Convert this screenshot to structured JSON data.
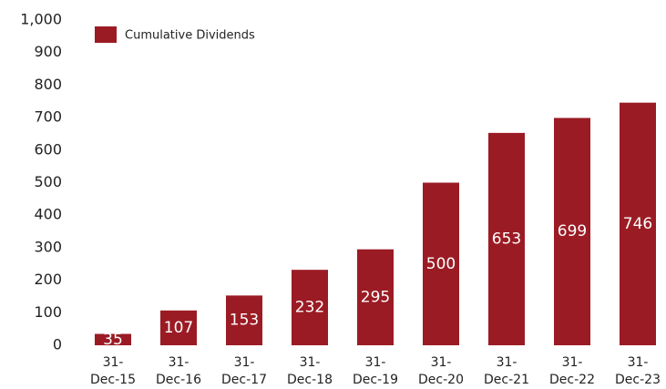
{
  "chart_data": {
    "type": "bar",
    "categories": [
      "31-Dec-15",
      "31-Dec-16",
      "31-Dec-17",
      "31-Dec-18",
      "31-Dec-19",
      "31-Dec-20",
      "31-Dec-21",
      "31-Dec-22",
      "31-Dec-23"
    ],
    "series": [
      {
        "name": "Cumulative Dividends",
        "color": "#9b1b24",
        "values": [
          35,
          107,
          153,
          232,
          295,
          500,
          653,
          699,
          746
        ]
      }
    ],
    "ylim": [
      0,
      1000
    ],
    "yticks": [
      0,
      100,
      200,
      300,
      400,
      500,
      600,
      700,
      800,
      900,
      {
        "value": 1000,
        "label": "1,000"
      }
    ],
    "legend": "top-left",
    "grid": false
  }
}
